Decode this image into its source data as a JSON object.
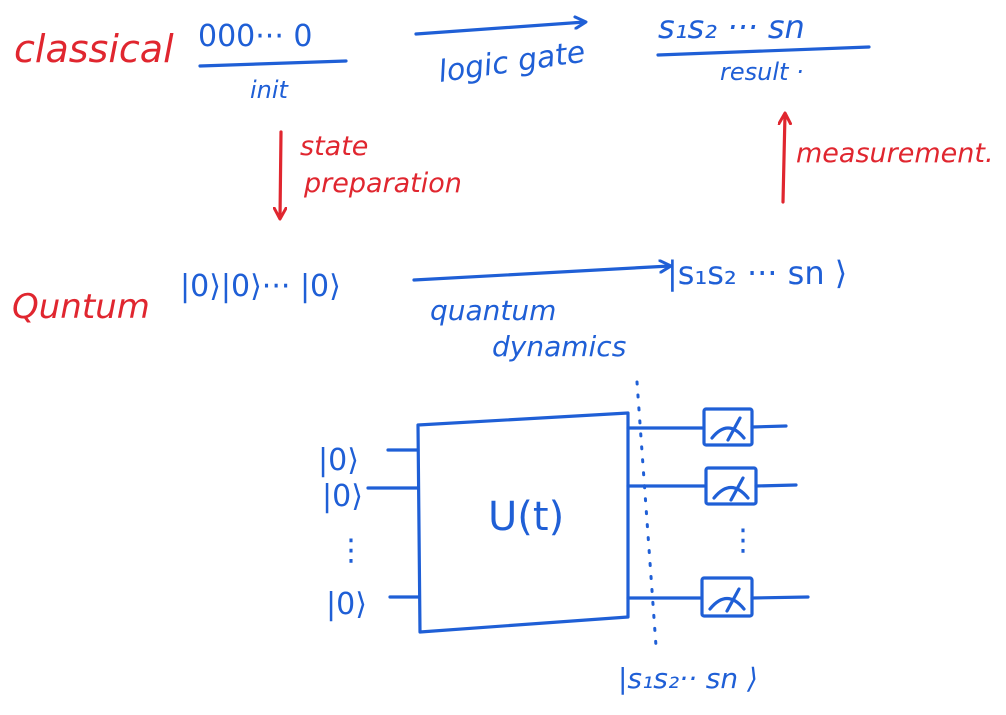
{
  "colors": {
    "red_ink": "#e0262f",
    "blue_ink": "#1f5fd6"
  },
  "classical": {
    "row_label": "classical",
    "init_value": "000··· 0",
    "init_label": "init",
    "gate_label": "logic gate",
    "result_value": "s₁s₂ ··· sn",
    "result_label": "result ·"
  },
  "transitions": {
    "down_label_1": "state",
    "down_label_2": "preparation",
    "up_label": "measurement."
  },
  "quantum": {
    "row_label": "Quntum",
    "init_state": "|0⟩|0⟩··· |0⟩",
    "dynamics_label_1": "quantum",
    "dynamics_label_2": "dynamics",
    "final_state": "|s₁s₂ ··· sn ⟩"
  },
  "circuit": {
    "inputs": [
      "|0⟩",
      "|0⟩",
      "|0⟩"
    ],
    "input_ellipsis": "⋮",
    "unitary_label": "U(t)",
    "meter_ellipsis": "⋮",
    "output_state": "|s₁s₂·· sn ⟩",
    "meter_icon": "measurement-meter-icon"
  }
}
